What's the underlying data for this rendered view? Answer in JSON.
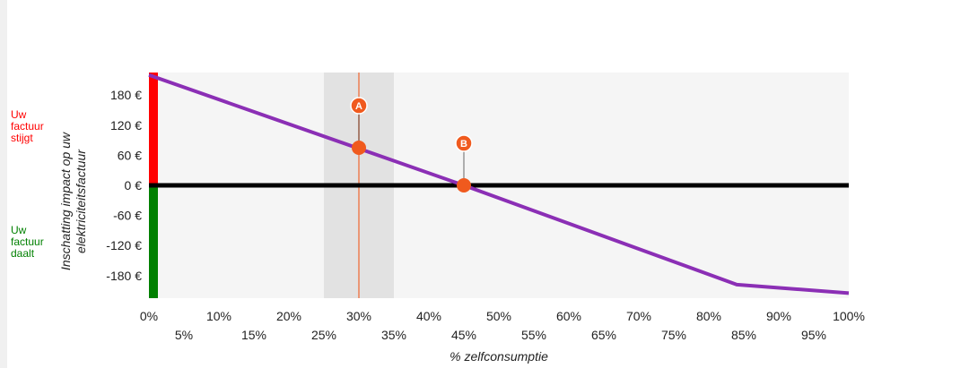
{
  "side_labels": {
    "increase": "Uw\nfactuur\nstijgt",
    "decrease": "Uw\nfactuur\ndaalt"
  },
  "colors": {
    "increase": "#ff0000",
    "decrease": "#008000",
    "line": "#8b2fb5",
    "marker": "#f05a1e",
    "plot_bg": "#f5f5f5",
    "band": "#e2e2e2",
    "zero_line": "#000000"
  },
  "chart_data": {
    "type": "line",
    "ylabel": "Inschatting impact op uw elektriciteitsfactuur",
    "ylabel_lines": [
      "Inschatting impact op uw",
      "elektriciteitsfactuur"
    ],
    "xlabel": "% zelfconsumptie",
    "xlim": [
      0,
      100
    ],
    "ylim": [
      -225,
      225
    ],
    "y_ticks": [
      {
        "value": 180,
        "label": "180 €"
      },
      {
        "value": 120,
        "label": "120 €"
      },
      {
        "value": 60,
        "label": "60 €"
      },
      {
        "value": 0,
        "label": "0 €"
      },
      {
        "value": -60,
        "label": "-60 €"
      },
      {
        "value": -120,
        "label": "-120 €"
      },
      {
        "value": -180,
        "label": "-180 €"
      }
    ],
    "x_ticks_upper": [
      {
        "value": 0,
        "label": "0%"
      },
      {
        "value": 10,
        "label": "10%"
      },
      {
        "value": 20,
        "label": "20%"
      },
      {
        "value": 30,
        "label": "30%"
      },
      {
        "value": 40,
        "label": "40%"
      },
      {
        "value": 50,
        "label": "50%"
      },
      {
        "value": 60,
        "label": "60%"
      },
      {
        "value": 70,
        "label": "70%"
      },
      {
        "value": 80,
        "label": "80%"
      },
      {
        "value": 90,
        "label": "90%"
      },
      {
        "value": 100,
        "label": "100%"
      }
    ],
    "x_ticks_lower": [
      {
        "value": 5,
        "label": "5%"
      },
      {
        "value": 15,
        "label": "15%"
      },
      {
        "value": 25,
        "label": "25%"
      },
      {
        "value": 35,
        "label": "35%"
      },
      {
        "value": 45,
        "label": "45%"
      },
      {
        "value": 55,
        "label": "55%"
      },
      {
        "value": 65,
        "label": "65%"
      },
      {
        "value": 75,
        "label": "75%"
      },
      {
        "value": 85,
        "label": "85%"
      },
      {
        "value": 95,
        "label": "95%"
      }
    ],
    "series": [
      {
        "x": [
          0,
          45,
          84,
          100
        ],
        "y": [
          220,
          0,
          -198,
          -215
        ]
      }
    ],
    "band": {
      "x_from": 25,
      "x_to": 35
    },
    "markers": [
      {
        "label": "A",
        "x": 30,
        "y": 75
      },
      {
        "label": "B",
        "x": 45,
        "y": 0
      }
    ]
  }
}
